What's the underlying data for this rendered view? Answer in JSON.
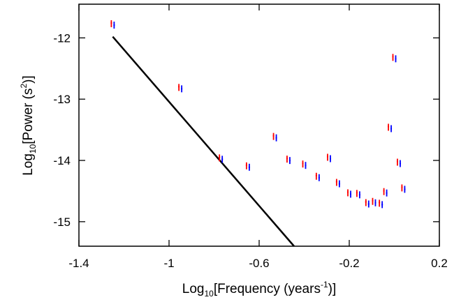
{
  "chart_data": {
    "type": "scatter",
    "title": "",
    "xlabel": {
      "prefix": "Log",
      "sub": "10",
      "mid": "[Frequency (years",
      "sup": "-1",
      "suffix": ")]"
    },
    "ylabel": {
      "prefix": "Log",
      "sub": "10",
      "mid": "[Power (s",
      "sup": "2",
      "suffix": ")]"
    },
    "xlim": [
      -1.4,
      0.2
    ],
    "ylim": [
      -15.4,
      -11.45
    ],
    "x_ticks": [
      -1.4,
      -1.0,
      -0.6,
      -0.2,
      0.2
    ],
    "x_tick_labels": [
      "-1.4",
      "-1",
      "-0.6",
      "-0.2",
      "0.2"
    ],
    "y_ticks": [
      -12,
      -13,
      -14,
      -15
    ],
    "y_tick_labels": [
      "-12",
      "-13",
      "-14",
      "-15"
    ],
    "grid": false,
    "legend": "none",
    "series": [
      {
        "style": "paired red/blue error markers",
        "color_left": "#ff0000",
        "color_right": "#0000ff",
        "points": [
          {
            "x": -1.25,
            "y": -11.78
          },
          {
            "x": -0.95,
            "y": -12.82
          },
          {
            "x": -0.77,
            "y": -13.97
          },
          {
            "x": -0.65,
            "y": -14.1
          },
          {
            "x": -0.53,
            "y": -13.62
          },
          {
            "x": -0.47,
            "y": -13.99
          },
          {
            "x": -0.4,
            "y": -14.07
          },
          {
            "x": -0.34,
            "y": -14.27
          },
          {
            "x": -0.29,
            "y": -13.96
          },
          {
            "x": -0.25,
            "y": -14.37
          },
          {
            "x": -0.2,
            "y": -14.54
          },
          {
            "x": -0.16,
            "y": -14.55
          },
          {
            "x": -0.12,
            "y": -14.7
          },
          {
            "x": -0.09,
            "y": -14.68
          },
          {
            "x": -0.06,
            "y": -14.71
          },
          {
            "x": -0.04,
            "y": -14.52
          },
          {
            "x": -0.02,
            "y": -13.47
          },
          {
            "x": 0.0,
            "y": -12.33
          },
          {
            "x": 0.02,
            "y": -14.04
          },
          {
            "x": 0.04,
            "y": -14.46
          }
        ]
      },
      {
        "style": "line",
        "color": "#000000",
        "x": [
          -1.25,
          -0.445
        ],
        "y": [
          -11.98,
          -15.4
        ]
      }
    ]
  }
}
